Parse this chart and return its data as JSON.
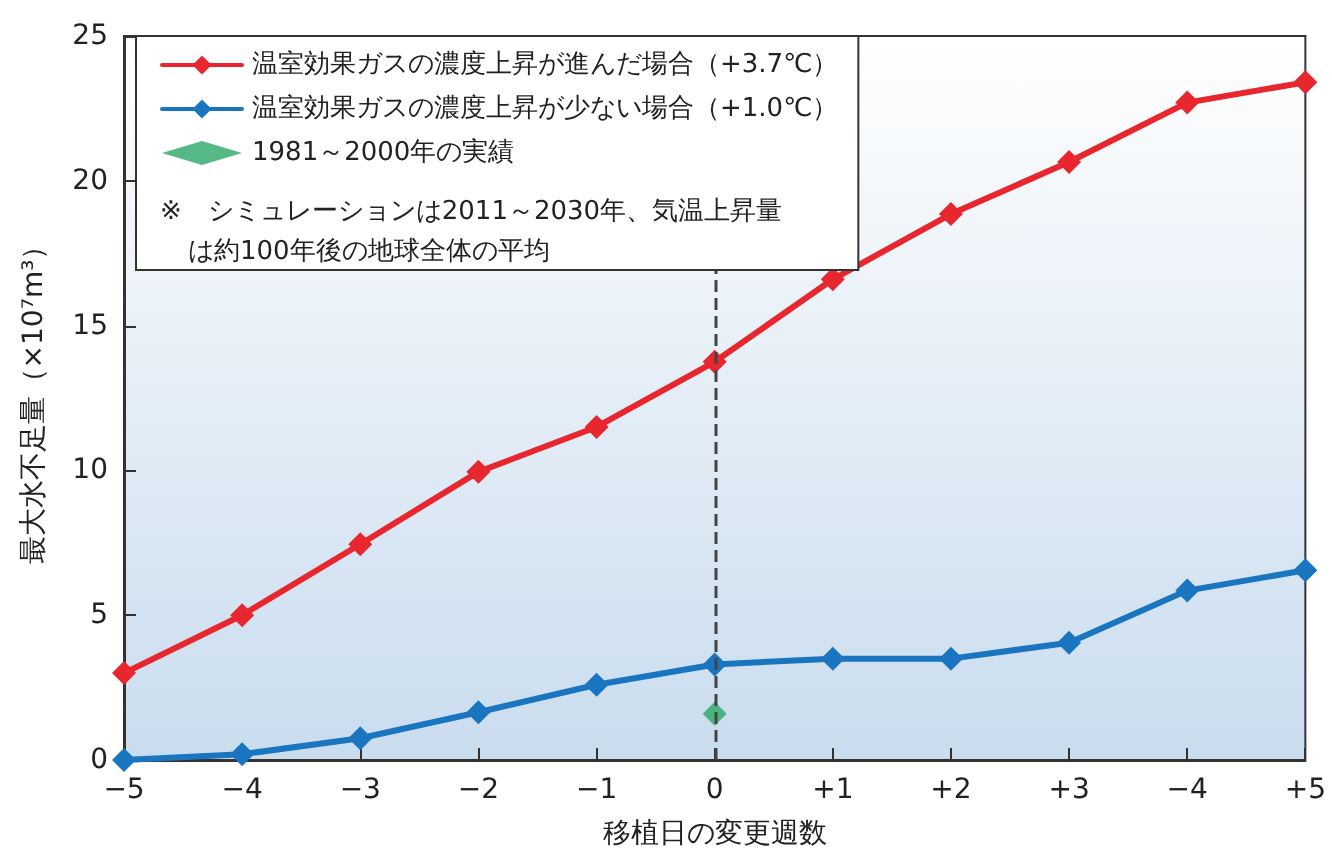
{
  "chart_data": {
    "type": "line",
    "xlabel": "移植日の変更週数",
    "ylabel": "最大水不足量（×10⁷m³）",
    "categories": [
      "−5",
      "−4",
      "−3",
      "−2",
      "−1",
      "0",
      "+1",
      "+2",
      "+3",
      "−4",
      "+5"
    ],
    "series": [
      {
        "name": "温室効果ガスの濃度上昇が進んだ場合（+3.7℃）",
        "color": "#e8262e",
        "values": [
          3.0,
          5.0,
          7.45,
          9.95,
          11.5,
          13.75,
          16.6,
          18.85,
          20.65,
          22.7,
          23.4
        ]
      },
      {
        "name": "温室効果ガスの濃度上昇が少ない場合（+1.0℃）",
        "color": "#1a75c0",
        "values": [
          0,
          0.2,
          0.75,
          1.65,
          2.6,
          3.3,
          3.5,
          3.5,
          4.05,
          5.85,
          6.55
        ]
      },
      {
        "name": "1981～2000年の実績",
        "type": "scatter",
        "color": "#2aa866",
        "x": [
          "0"
        ],
        "values": [
          1.6
        ]
      }
    ],
    "ylim": [
      0,
      25
    ],
    "yticks": [
      0,
      5,
      10,
      15,
      20,
      25
    ],
    "ref_lines": [
      {
        "axis": "x",
        "value": "0",
        "color": "#444444",
        "line_style": "dashed"
      }
    ],
    "annotations": [
      "※　シミュレーションは2011～2030年、気温上昇量",
      "は約100年後の地球全体の平均"
    ],
    "marker": "diamond",
    "line_style": "solid",
    "grid": false,
    "legend": "top left"
  }
}
